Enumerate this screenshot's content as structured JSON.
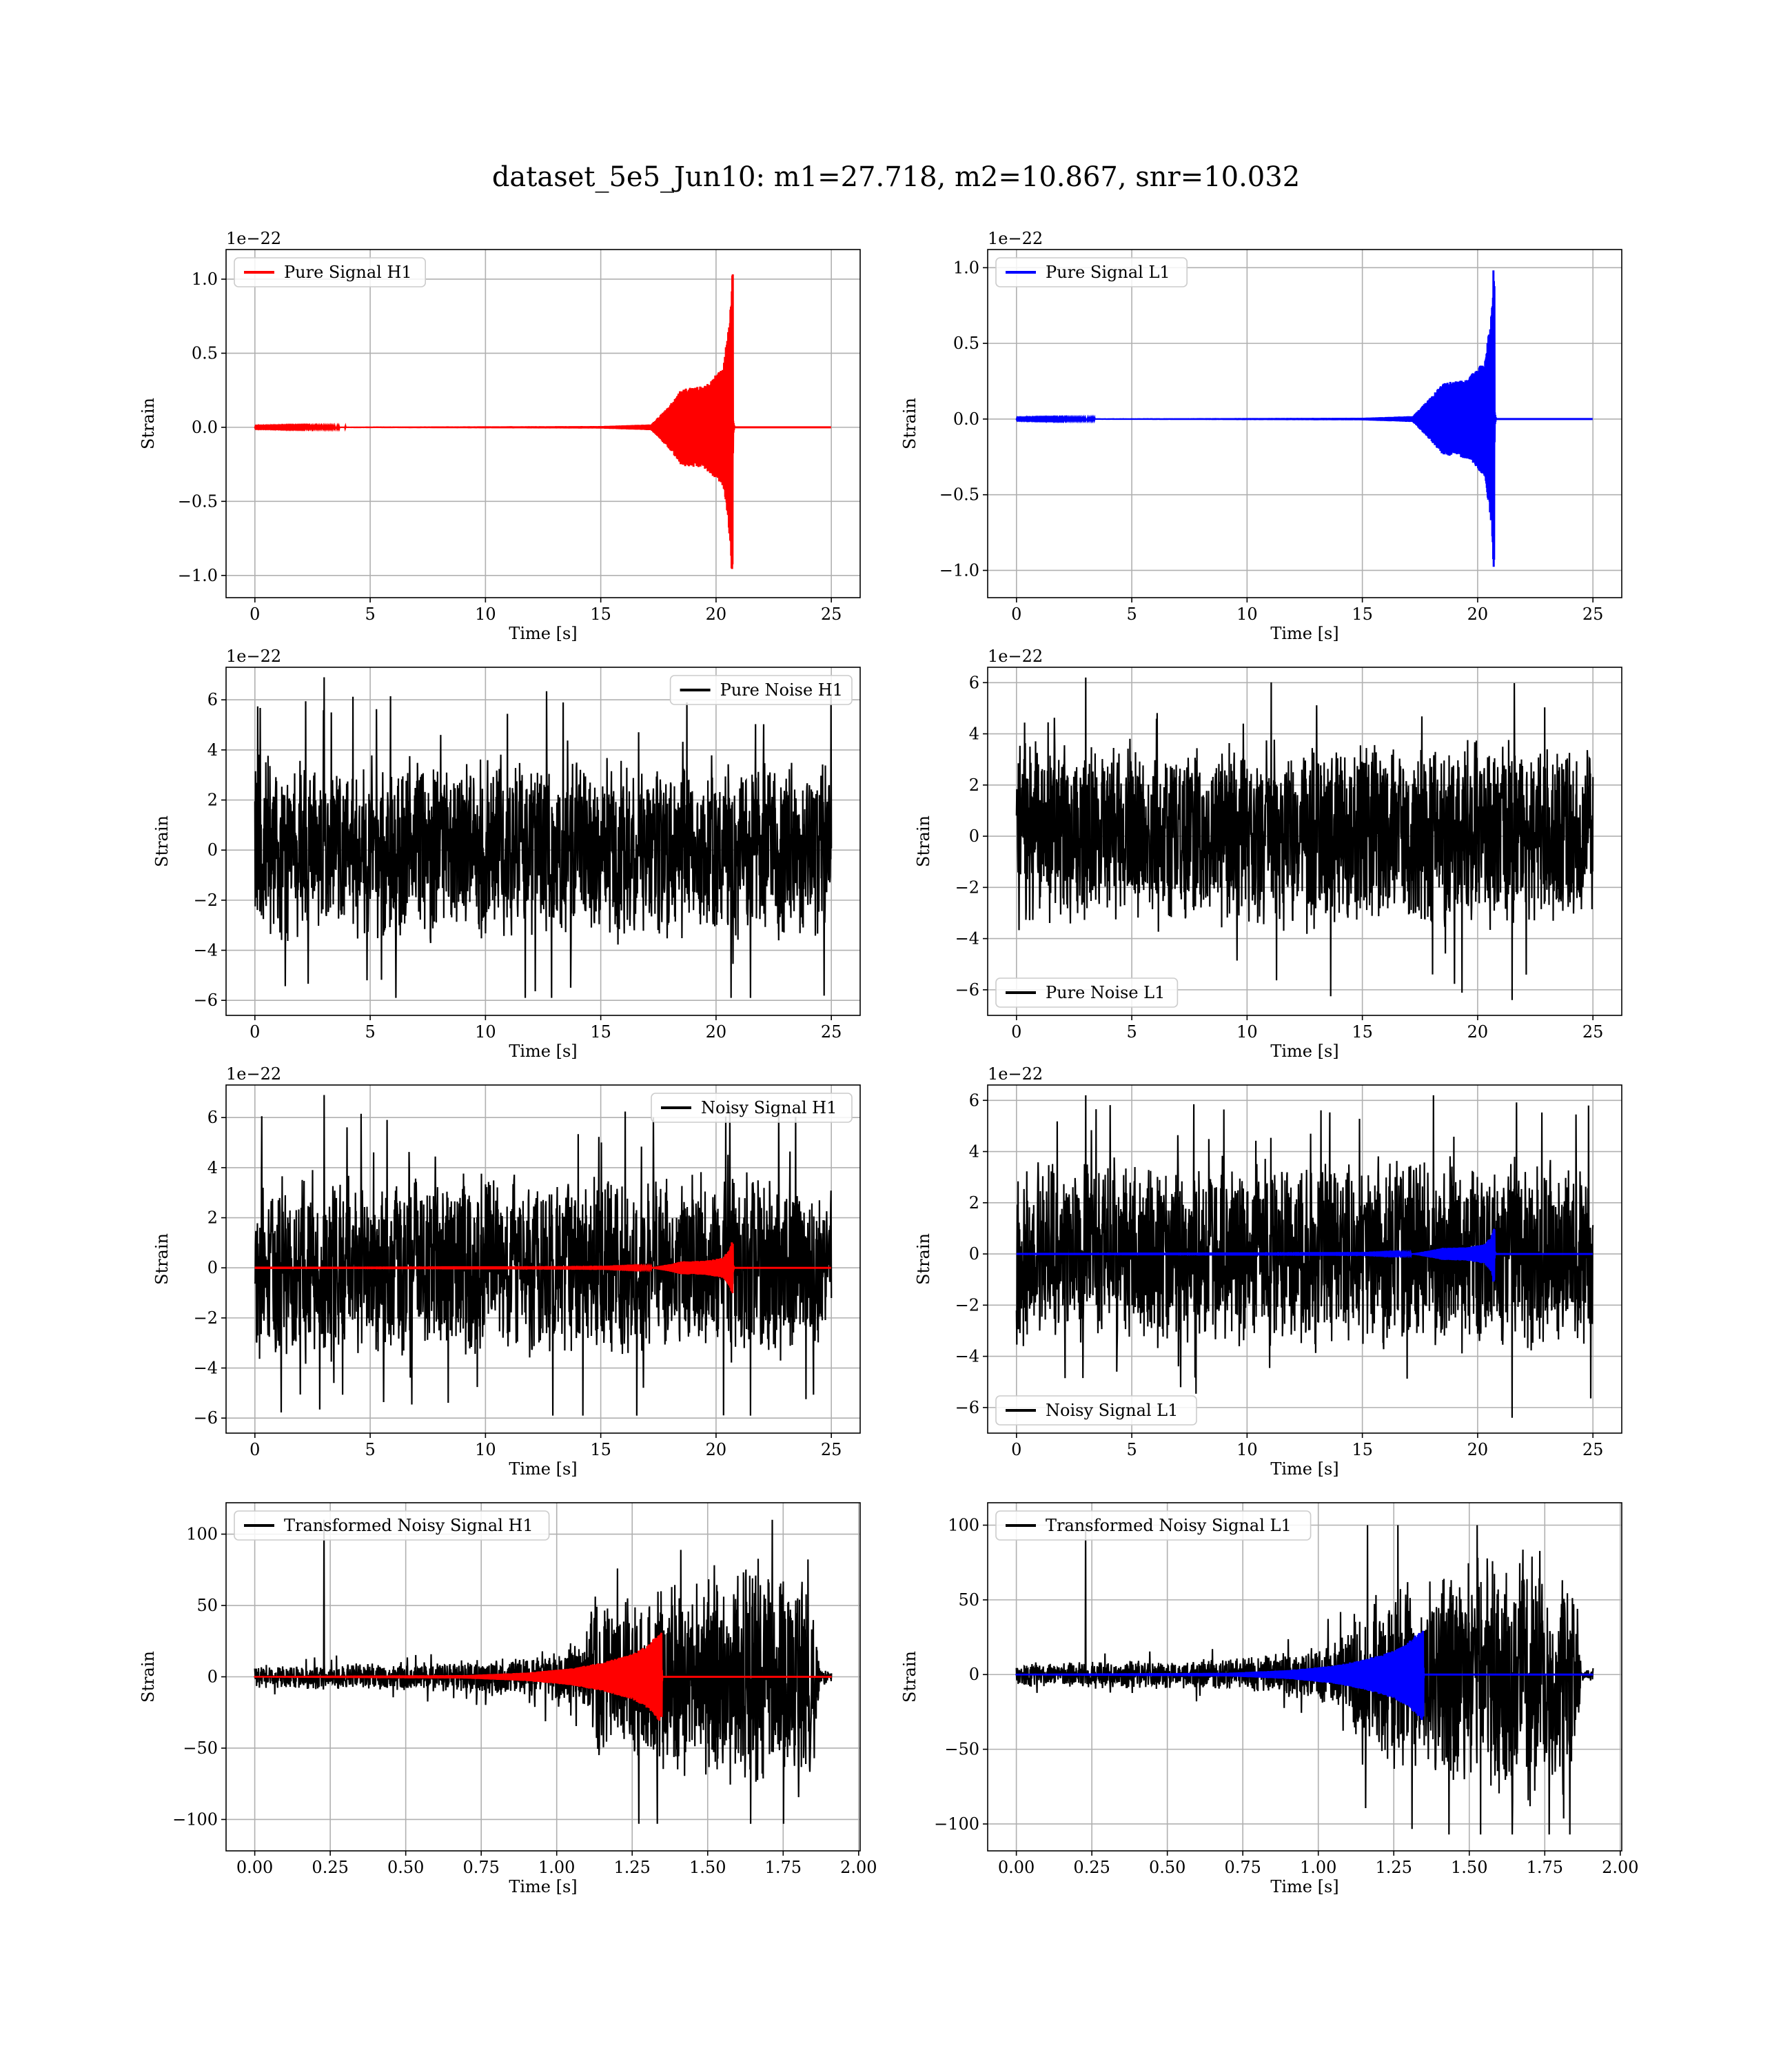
{
  "figure": {
    "title": "dataset_5e5_Jun10: m1=27.718, m2=10.867, snr=10.032"
  },
  "colors": {
    "h1_signal": "#ff0000",
    "l1_signal": "#0000ff",
    "noise": "#000000",
    "grid": "#b0b0b0"
  },
  "chart_data": [
    {
      "type": "line",
      "kind": "pure_signal",
      "detector": "H1",
      "ylabel": "Strain",
      "xlabel": "Time [s]",
      "offset_text": "1e−22",
      "xlim": [
        -1.25,
        26.25
      ],
      "ylim": [
        -1.15,
        1.2
      ],
      "xticks": [
        0,
        5,
        10,
        15,
        20,
        25
      ],
      "xtick_labels": [
        "0",
        "5",
        "10",
        "15",
        "20",
        "25"
      ],
      "yticks": [
        -1.0,
        -0.5,
        0.0,
        0.5,
        1.0
      ],
      "ytick_labels": [
        "−1.0",
        "−0.5",
        "0.0",
        "0.5",
        "1.0"
      ],
      "grid": true,
      "legend_position": "upper left",
      "series": [
        {
          "name": "Pure Signal H1",
          "color": "#ff0000",
          "t_start": 0,
          "t_end": 25,
          "t_merger": 20.7,
          "envelope": [
            [
              0,
              0.002
            ],
            [
              15,
              0.008
            ],
            [
              17.2,
              0.02
            ],
            [
              18,
              0.15
            ],
            [
              18.5,
              0.26
            ],
            [
              19.5,
              0.28
            ],
            [
              20.3,
              0.4
            ],
            [
              20.6,
              0.75
            ],
            [
              20.7,
              1.07
            ],
            [
              20.74,
              0.05
            ],
            [
              20.8,
              0.0
            ]
          ],
          "peak_max": 1.07,
          "peak_min": -1.04
        }
      ]
    },
    {
      "type": "line",
      "kind": "pure_signal",
      "detector": "L1",
      "ylabel": "Strain",
      "xlabel": "Time [s]",
      "offset_text": "1e−22",
      "xlim": [
        -1.25,
        26.25
      ],
      "ylim": [
        -1.18,
        1.12
      ],
      "xticks": [
        0,
        5,
        10,
        15,
        20,
        25
      ],
      "xtick_labels": [
        "0",
        "5",
        "10",
        "15",
        "20",
        "25"
      ],
      "yticks": [
        -1.0,
        -0.5,
        0.0,
        0.5,
        1.0
      ],
      "ytick_labels": [
        "−1.0",
        "−0.5",
        "0.0",
        "0.5",
        "1.0"
      ],
      "grid": true,
      "legend_position": "upper left",
      "series": [
        {
          "name": "Pure Signal L1",
          "color": "#0000ff",
          "t_start": 0,
          "t_end": 25,
          "t_merger": 20.7,
          "envelope": [
            [
              0,
              0.002
            ],
            [
              15,
              0.008
            ],
            [
              17.2,
              0.02
            ],
            [
              18,
              0.15
            ],
            [
              18.5,
              0.24
            ],
            [
              19.5,
              0.26
            ],
            [
              20.3,
              0.38
            ],
            [
              20.6,
              0.7
            ],
            [
              20.7,
              1.0
            ],
            [
              20.74,
              0.05
            ],
            [
              20.8,
              0.0
            ]
          ],
          "peak_max": 1.0,
          "peak_min": -1.08
        }
      ]
    },
    {
      "type": "line",
      "kind": "noise",
      "detector": "H1",
      "ylabel": "Strain",
      "xlabel": "Time [s]",
      "offset_text": "1e−22",
      "xlim": [
        -1.25,
        26.25
      ],
      "ylim": [
        -6.6,
        7.3
      ],
      "xticks": [
        0,
        5,
        10,
        15,
        20,
        25
      ],
      "xtick_labels": [
        "0",
        "5",
        "10",
        "15",
        "20",
        "25"
      ],
      "yticks": [
        -6,
        -4,
        -2,
        0,
        2,
        4,
        6
      ],
      "ytick_labels": [
        "−6",
        "−4",
        "−2",
        "0",
        "2",
        "4",
        "6"
      ],
      "grid": true,
      "legend_position": "upper right",
      "series": [
        {
          "name": "Pure Noise H1",
          "color": "#000000",
          "t_start": 0,
          "t_end": 25,
          "max": 6.9,
          "min": -5.9
        }
      ]
    },
    {
      "type": "line",
      "kind": "noise",
      "detector": "L1",
      "ylabel": "Strain",
      "xlabel": "Time [s]",
      "offset_text": "1e−22",
      "xlim": [
        -1.25,
        26.25
      ],
      "ylim": [
        -7.0,
        6.6
      ],
      "xticks": [
        0,
        5,
        10,
        15,
        20,
        25
      ],
      "xtick_labels": [
        "0",
        "5",
        "10",
        "15",
        "20",
        "25"
      ],
      "yticks": [
        -6,
        -4,
        -2,
        0,
        2,
        4,
        6
      ],
      "ytick_labels": [
        "−6",
        "−4",
        "−2",
        "0",
        "2",
        "4",
        "6"
      ],
      "grid": true,
      "legend_position": "lower left",
      "series": [
        {
          "name": "Pure Noise L1",
          "color": "#000000",
          "t_start": 0,
          "t_end": 25,
          "max": 6.2,
          "min": -6.4
        }
      ]
    },
    {
      "type": "line",
      "kind": "noisy_signal",
      "detector": "H1",
      "ylabel": "Strain",
      "xlabel": "Time [s]",
      "offset_text": "1e−22",
      "xlim": [
        -1.25,
        26.25
      ],
      "ylim": [
        -6.6,
        7.3
      ],
      "xticks": [
        0,
        5,
        10,
        15,
        20,
        25
      ],
      "xtick_labels": [
        "0",
        "5",
        "10",
        "15",
        "20",
        "25"
      ],
      "yticks": [
        -6,
        -4,
        -2,
        0,
        2,
        4,
        6
      ],
      "ytick_labels": [
        "−6",
        "−4",
        "−2",
        "0",
        "2",
        "4",
        "6"
      ],
      "grid": true,
      "legend_position": "upper right",
      "series": [
        {
          "name": "Noisy Signal H1",
          "color": "#000000",
          "t_start": 0,
          "t_end": 25,
          "max": 6.9,
          "min": -5.9
        },
        {
          "color": "#ff0000",
          "t_start": 0,
          "t_end": 25,
          "t_merger": 20.7,
          "envelope": [
            [
              0,
              0.002
            ],
            [
              15,
              0.008
            ],
            [
              17.2,
              0.02
            ],
            [
              18,
              0.15
            ],
            [
              18.5,
              0.26
            ],
            [
              19.5,
              0.28
            ],
            [
              20.3,
              0.4
            ],
            [
              20.6,
              0.75
            ],
            [
              20.7,
              1.07
            ],
            [
              20.74,
              0.05
            ],
            [
              20.8,
              0.0
            ]
          ],
          "peak_max": 1.07,
          "peak_min": -1.04
        }
      ]
    },
    {
      "type": "line",
      "kind": "noisy_signal",
      "detector": "L1",
      "ylabel": "Strain",
      "xlabel": "Time [s]",
      "offset_text": "1e−22",
      "xlim": [
        -1.25,
        26.25
      ],
      "ylim": [
        -7.0,
        6.6
      ],
      "xticks": [
        0,
        5,
        10,
        15,
        20,
        25
      ],
      "xtick_labels": [
        "0",
        "5",
        "10",
        "15",
        "20",
        "25"
      ],
      "yticks": [
        -6,
        -4,
        -2,
        0,
        2,
        4,
        6
      ],
      "ytick_labels": [
        "−6",
        "−4",
        "−2",
        "0",
        "2",
        "4",
        "6"
      ],
      "grid": true,
      "legend_position": "lower left",
      "series": [
        {
          "name": "Noisy Signal L1",
          "color": "#000000",
          "t_start": 0,
          "t_end": 25,
          "max": 6.2,
          "min": -6.4
        },
        {
          "color": "#0000ff",
          "t_start": 0,
          "t_end": 25,
          "t_merger": 20.7,
          "envelope": [
            [
              0,
              0.002
            ],
            [
              15,
              0.008
            ],
            [
              17.2,
              0.02
            ],
            [
              18,
              0.15
            ],
            [
              18.5,
              0.24
            ],
            [
              19.5,
              0.26
            ],
            [
              20.3,
              0.38
            ],
            [
              20.6,
              0.7
            ],
            [
              20.7,
              1.0
            ],
            [
              20.74,
              0.05
            ],
            [
              20.8,
              0.0
            ]
          ],
          "peak_max": 1.0,
          "peak_min": -1.08
        }
      ]
    },
    {
      "type": "line",
      "kind": "transformed",
      "detector": "H1",
      "ylabel": "Strain",
      "xlabel": "Time [s]",
      "offset_text": "",
      "xlim": [
        -0.095,
        2.005
      ],
      "ylim": [
        -122,
        122
      ],
      "xticks": [
        0.0,
        0.25,
        0.5,
        0.75,
        1.0,
        1.25,
        1.5,
        1.75,
        2.0
      ],
      "xtick_labels": [
        "0.00",
        "0.25",
        "0.50",
        "0.75",
        "1.00",
        "1.25",
        "1.50",
        "1.75",
        "2.00"
      ],
      "yticks": [
        -100,
        -50,
        0,
        50,
        100
      ],
      "ytick_labels": [
        "−100",
        "−50",
        "0",
        "50",
        "100"
      ],
      "grid": true,
      "legend_position": "upper left",
      "series": [
        {
          "name": "Transformed Noisy Signal H1",
          "color": "#000000",
          "t_start": 0,
          "t_end": 1.91,
          "envelope": [
            [
              0,
              8
            ],
            [
              0.6,
              10
            ],
            [
              0.9,
              14
            ],
            [
              1.0,
              20
            ],
            [
              1.1,
              25
            ],
            [
              1.12,
              55
            ],
            [
              1.4,
              65
            ],
            [
              1.6,
              80
            ],
            [
              1.75,
              85
            ],
            [
              1.85,
              78
            ],
            [
              1.87,
              5
            ],
            [
              1.91,
              5
            ]
          ],
          "max": 110,
          "min": -103
        },
        {
          "color": "#ff0000",
          "t_start": 0,
          "t_end": 1.91,
          "t_merger": 1.345,
          "envelope": [
            [
              0,
              0.5
            ],
            [
              0.7,
              1.2
            ],
            [
              0.9,
              3
            ],
            [
              1.05,
              6
            ],
            [
              1.15,
              10
            ],
            [
              1.25,
              16
            ],
            [
              1.3,
              22
            ],
            [
              1.34,
              31
            ],
            [
              1.35,
              0
            ],
            [
              1.91,
              0
            ]
          ],
          "peak_max": 31,
          "peak_min": -30
        }
      ]
    },
    {
      "type": "line",
      "kind": "transformed",
      "detector": "L1",
      "ylabel": "Strain",
      "xlabel": "Time [s]",
      "offset_text": "",
      "xlim": [
        -0.095,
        2.005
      ],
      "ylim": [
        -118,
        115
      ],
      "xticks": [
        0.0,
        0.25,
        0.5,
        0.75,
        1.0,
        1.25,
        1.5,
        1.75,
        2.0
      ],
      "xtick_labels": [
        "0.00",
        "0.25",
        "0.50",
        "0.75",
        "1.00",
        "1.25",
        "1.50",
        "1.75",
        "2.00"
      ],
      "yticks": [
        -100,
        -50,
        0,
        50,
        100
      ],
      "ytick_labels": [
        "−100",
        "−50",
        "0",
        "50",
        "100"
      ],
      "grid": true,
      "legend_position": "upper left",
      "series": [
        {
          "name": "Transformed Noisy Signal L1",
          "color": "#000000",
          "t_start": 0,
          "t_end": 1.91,
          "envelope": [
            [
              0,
              8
            ],
            [
              0.6,
              10
            ],
            [
              0.9,
              14
            ],
            [
              1.0,
              20
            ],
            [
              1.1,
              25
            ],
            [
              1.12,
              58
            ],
            [
              1.4,
              68
            ],
            [
              1.6,
              80
            ],
            [
              1.75,
              82
            ],
            [
              1.85,
              75
            ],
            [
              1.87,
              5
            ],
            [
              1.91,
              5
            ]
          ],
          "max": 100,
          "min": -107
        },
        {
          "color": "#0000ff",
          "t_start": 0,
          "t_end": 1.91,
          "t_merger": 1.345,
          "envelope": [
            [
              0,
              0.5
            ],
            [
              0.7,
              1.2
            ],
            [
              0.9,
              3
            ],
            [
              1.05,
              6
            ],
            [
              1.15,
              10
            ],
            [
              1.25,
              16
            ],
            [
              1.3,
              22
            ],
            [
              1.34,
              30
            ],
            [
              1.35,
              0
            ],
            [
              1.91,
              0
            ]
          ],
          "peak_max": 30,
          "peak_min": -31
        }
      ]
    }
  ]
}
